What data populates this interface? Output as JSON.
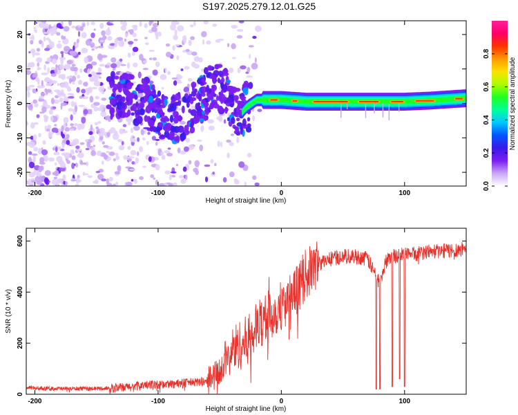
{
  "figure": {
    "title": "S197.2025.279.12.01.G25"
  },
  "chart_data": [
    {
      "type": "heatmap",
      "name": "spectrogram",
      "xlabel": "Height of straight line (km)",
      "ylabel": "Frequency (Hz)",
      "xlim": [
        -207,
        150
      ],
      "ylim": [
        -24,
        24
      ],
      "xticks": [
        -200,
        -100,
        0,
        100
      ],
      "xtick_labels": [
        "-200",
        "-100",
        "0",
        "100"
      ],
      "yticks": [
        -20,
        -10,
        0,
        10,
        20
      ],
      "ytick_labels": [
        "-20",
        "-10",
        "0",
        "10",
        "20"
      ],
      "signal_track": {
        "description_points_x": [
          -130,
          -110,
          -90,
          -75,
          -60,
          -50,
          -40,
          -33,
          -28,
          -20,
          -10,
          0,
          20,
          50,
          80,
          100,
          120,
          150
        ],
        "description_points_y": [
          2,
          0,
          -5,
          -2,
          3,
          5,
          0,
          -3,
          -1,
          1,
          1,
          1,
          0.5,
          0.5,
          0.5,
          0.5,
          0.8,
          1.5
        ]
      },
      "colorbar": {
        "label": "Normalized spectral amplitude",
        "range": [
          0,
          1
        ],
        "ticks": [
          0.0,
          0.2,
          0.4,
          0.6,
          0.8
        ],
        "tick_labels": [
          "0.0",
          "0.2",
          "0.4",
          "0.6",
          "0.8"
        ],
        "colors": [
          "#ffffff",
          "#c9a6f5",
          "#7a1ff0",
          "#3a1ae8",
          "#0055ff",
          "#00c8ff",
          "#00ff9a",
          "#20ff20",
          "#a8ff00",
          "#ffe100",
          "#ff9900",
          "#ff3300",
          "#ff0066",
          "#ff1f9e"
        ]
      }
    },
    {
      "type": "line",
      "name": "snr",
      "xlabel": "Height of straight line (km)",
      "ylabel": "SNR (10 * v/v)",
      "xlim": [
        -207,
        150
      ],
      "ylim": [
        0,
        650
      ],
      "xticks": [
        -200,
        -100,
        0,
        100
      ],
      "xtick_labels": [
        "-200",
        "-100",
        "0",
        "100"
      ],
      "yticks": [
        0,
        200,
        400,
        600
      ],
      "ytick_labels": [
        "0",
        "200",
        "400",
        "600"
      ],
      "color": "#e8302a",
      "series": [
        {
          "name": "SNR",
          "x": [
            -207,
            -180,
            -150,
            -130,
            -110,
            -90,
            -75,
            -60,
            -50,
            -45,
            -40,
            -35,
            -30,
            -25,
            -20,
            -15,
            -10,
            -5,
            0,
            5,
            10,
            15,
            20,
            30,
            40,
            50,
            60,
            70,
            75,
            80,
            85,
            90,
            100,
            110,
            120,
            130,
            140,
            150
          ],
          "y": [
            25,
            22,
            22,
            25,
            35,
            40,
            45,
            50,
            90,
            130,
            170,
            190,
            200,
            230,
            260,
            290,
            310,
            320,
            350,
            360,
            390,
            430,
            470,
            510,
            530,
            540,
            540,
            530,
            480,
            440,
            520,
            540,
            550,
            550,
            560,
            560,
            565,
            570
          ]
        }
      ],
      "dips": [
        {
          "x": 77,
          "y": 20
        },
        {
          "x": 80,
          "y": 20
        },
        {
          "x": 90,
          "y": 30
        },
        {
          "x": 96,
          "y": 60
        },
        {
          "x": 100,
          "y": 30
        }
      ]
    }
  ]
}
